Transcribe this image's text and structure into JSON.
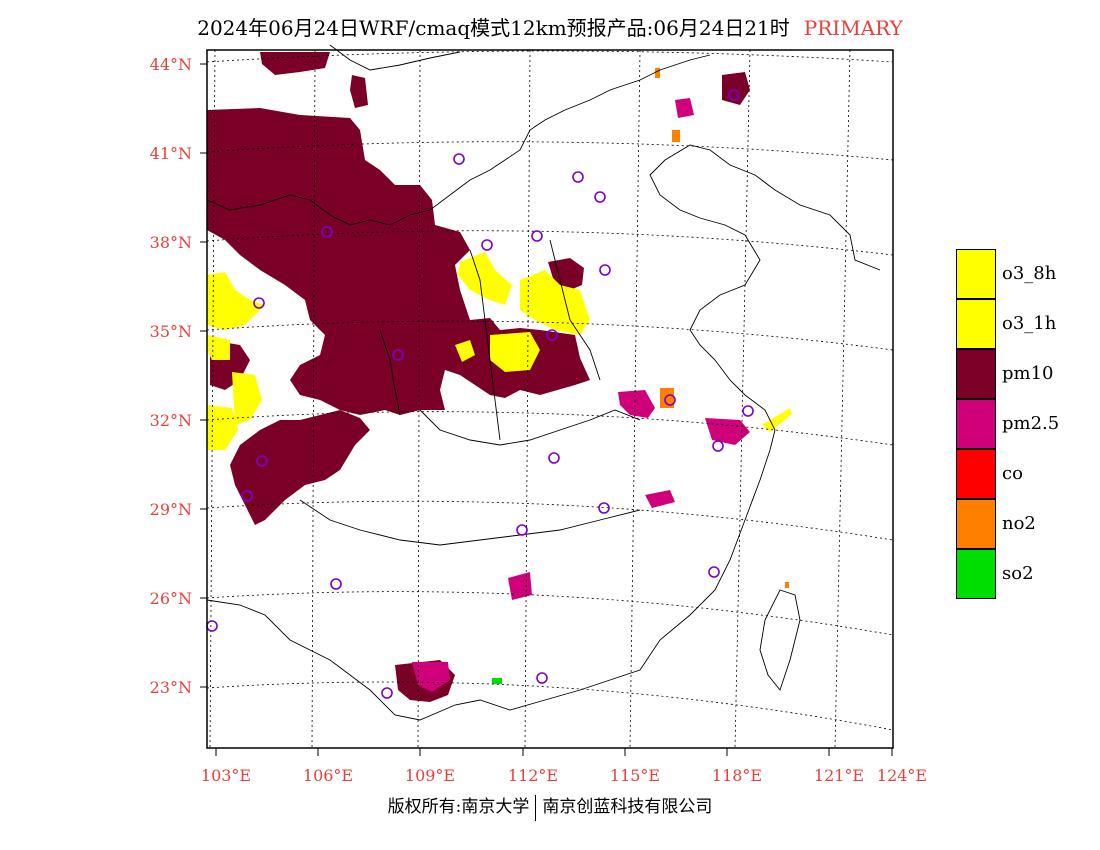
{
  "title": {
    "main": "2024年06月24日WRF/cmaq模式12km预报产品:06月24日21时",
    "tag": "PRIMARY"
  },
  "axes": {
    "lat_labels": [
      "44°N",
      "41°N",
      "38°N",
      "35°N",
      "32°N",
      "29°N",
      "26°N",
      "23°N"
    ],
    "lon_labels": [
      "103°E",
      "106°E",
      "109°E",
      "112°E",
      "115°E",
      "118°E",
      "121°E",
      "124°E"
    ]
  },
  "legend": [
    {
      "label": "o3_8h",
      "color": "#ffff00"
    },
    {
      "label": "o3_1h",
      "color": "#ffff00"
    },
    {
      "label": "pm10",
      "color": "#7a0028"
    },
    {
      "label": "pm2.5",
      "color": "#d0007a"
    },
    {
      "label": "co",
      "color": "#ff0000"
    },
    {
      "label": "no2",
      "color": "#ff7f00"
    },
    {
      "label": "so2",
      "color": "#00dd00"
    }
  ],
  "footer": {
    "left": "版权所有:南京大学",
    "right": "南京创蓝科技有限公司"
  }
}
